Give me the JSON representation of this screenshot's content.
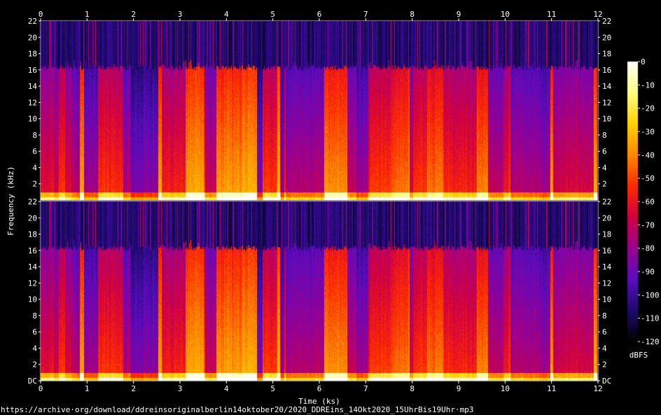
{
  "chart_data": {
    "type": "heatmap",
    "subtype": "spectrogram",
    "channels": 2,
    "xlabel": "Time (ks)",
    "ylabel": "Frequency (kHz)",
    "x_ticks": [
      "0",
      "1",
      "2",
      "3",
      "4",
      "5",
      "6",
      "7",
      "8",
      "9",
      "10",
      "11",
      "12"
    ],
    "xlim": [
      0,
      12
    ],
    "y_ticks": [
      "DC",
      "2",
      "4",
      "6",
      "8",
      "10",
      "12",
      "14",
      "16",
      "18",
      "20",
      "22"
    ],
    "ylim": [
      0,
      22
    ],
    "colorbar": {
      "label": "dBFS",
      "ticks": [
        "0",
        "-10",
        "-20",
        "-30",
        "-40",
        "-50",
        "-60",
        "-70",
        "-80",
        "-90",
        "-100",
        "-110",
        "-120"
      ],
      "range": [
        -120,
        0
      ],
      "colors": [
        "#ffffff",
        "#ffff80",
        "#ffd000",
        "#ff8800",
        "#ff2a00",
        "#d10040",
        "#9a0090",
        "#5a0cc0",
        "#1e0a70",
        "#000000"
      ]
    },
    "lowpass_cutoff_khz": 16
  },
  "source_url": "https://archive·org/download/ddreinsoriginalberlin14oktober20/2020_DDREins_14Okt2020_15UhrBis19Uhr·mp3"
}
